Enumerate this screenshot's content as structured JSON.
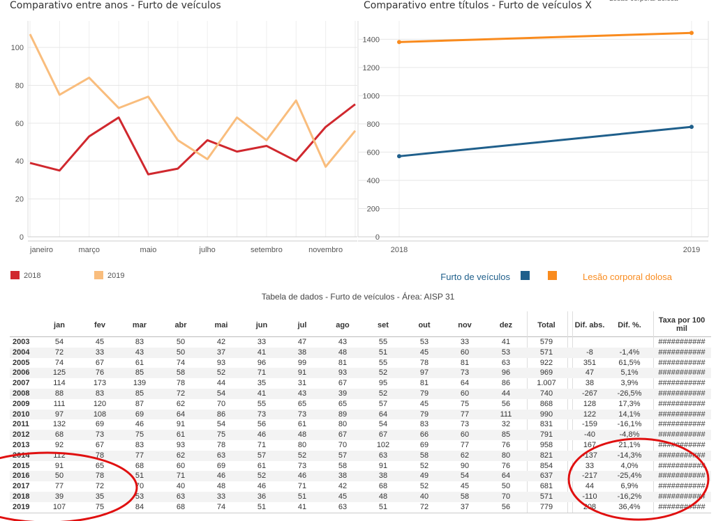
{
  "chart_data": [
    {
      "type": "line",
      "title": "Comparativo entre anos - Furto de veículos",
      "categories": [
        "janeiro",
        null,
        "março",
        null,
        "maio",
        null,
        "julho",
        null,
        "setembro",
        null,
        "novembro",
        null
      ],
      "series": [
        {
          "name": "2018",
          "color": "#d0282e",
          "values": [
            39,
            35,
            53,
            63,
            33,
            36,
            51,
            45,
            48,
            40,
            58,
            70
          ]
        },
        {
          "name": "2019",
          "color": "#f9bd7d",
          "values": [
            107,
            75,
            84,
            68,
            74,
            51,
            41,
            63,
            51,
            72,
            37,
            56
          ]
        }
      ],
      "ylim": [
        0,
        114
      ],
      "yticks": [
        0,
        20,
        40,
        60,
        80,
        100
      ],
      "grid": true
    },
    {
      "type": "line",
      "title": "Comparativo entre títulos - Furto de veículos X",
      "categories": [
        "2018",
        "2019"
      ],
      "series": [
        {
          "name": "Furto de veículos",
          "color": "#1f5f8b",
          "values": [
            571,
            779
          ]
        },
        {
          "name": "Lesão corporal dolosa",
          "color": "#f98b1e",
          "values": [
            1380,
            1445
          ]
        }
      ],
      "ylim": [
        0,
        1530
      ],
      "yticks": [
        0,
        200,
        400,
        600,
        800,
        1000,
        1200,
        1400
      ],
      "grid": true
    }
  ],
  "table": {
    "title": "Tabela de dados - Furto de veículos - Área: AISP 31",
    "columns": [
      "jan",
      "fev",
      "mar",
      "abr",
      "mai",
      "jun",
      "jul",
      "ago",
      "set",
      "out",
      "nov",
      "dez",
      "Total",
      "Dif. abs.",
      "Dif. %.",
      "Taxa por 100 mil"
    ],
    "rows": [
      [
        "2003",
        "54",
        "45",
        "83",
        "50",
        "42",
        "33",
        "47",
        "43",
        "55",
        "53",
        "33",
        "41",
        "579",
        null,
        null,
        "###########"
      ],
      [
        "2004",
        "72",
        "33",
        "43",
        "50",
        "37",
        "41",
        "38",
        "48",
        "51",
        "45",
        "60",
        "53",
        "571",
        "-8",
        "-1,4%",
        "###########"
      ],
      [
        "2005",
        "74",
        "67",
        "61",
        "74",
        "93",
        "96",
        "99",
        "81",
        "55",
        "78",
        "81",
        "63",
        "922",
        "351",
        "61,5%",
        "###########"
      ],
      [
        "2006",
        "125",
        "76",
        "85",
        "58",
        "52",
        "71",
        "91",
        "93",
        "52",
        "97",
        "73",
        "96",
        "969",
        "47",
        "5,1%",
        "###########"
      ],
      [
        "2007",
        "114",
        "173",
        "139",
        "78",
        "44",
        "35",
        "31",
        "67",
        "95",
        "81",
        "64",
        "86",
        "1.007",
        "38",
        "3,9%",
        "###########"
      ],
      [
        "2008",
        "88",
        "83",
        "85",
        "72",
        "54",
        "41",
        "43",
        "39",
        "52",
        "79",
        "60",
        "44",
        "740",
        "-267",
        "-26,5%",
        "###########"
      ],
      [
        "2009",
        "111",
        "120",
        "87",
        "62",
        "70",
        "55",
        "65",
        "65",
        "57",
        "45",
        "75",
        "56",
        "868",
        "128",
        "17,3%",
        "###########"
      ],
      [
        "2010",
        "97",
        "108",
        "69",
        "64",
        "86",
        "73",
        "73",
        "89",
        "64",
        "79",
        "77",
        "111",
        "990",
        "122",
        "14,1%",
        "###########"
      ],
      [
        "2011",
        "132",
        "69",
        "46",
        "91",
        "54",
        "56",
        "61",
        "80",
        "54",
        "83",
        "73",
        "32",
        "831",
        "-159",
        "-16,1%",
        "###########"
      ],
      [
        "2012",
        "68",
        "73",
        "75",
        "61",
        "75",
        "46",
        "48",
        "67",
        "67",
        "66",
        "60",
        "85",
        "791",
        "-40",
        "-4,8%",
        "###########"
      ],
      [
        "2013",
        "92",
        "67",
        "83",
        "93",
        "78",
        "71",
        "80",
        "70",
        "102",
        "69",
        "77",
        "76",
        "958",
        "167",
        "21,1%",
        "###########"
      ],
      [
        "2014",
        "112",
        "78",
        "77",
        "62",
        "63",
        "57",
        "52",
        "57",
        "63",
        "58",
        "62",
        "80",
        "821",
        "-137",
        "-14,3%",
        "###########"
      ],
      [
        "2015",
        "91",
        "65",
        "68",
        "60",
        "69",
        "61",
        "73",
        "58",
        "91",
        "52",
        "90",
        "76",
        "854",
        "33",
        "4,0%",
        "###########"
      ],
      [
        "2016",
        "50",
        "78",
        "51",
        "71",
        "46",
        "52",
        "46",
        "38",
        "38",
        "49",
        "54",
        "64",
        "637",
        "-217",
        "-25,4%",
        "###########"
      ],
      [
        "2017",
        "77",
        "72",
        "70",
        "40",
        "48",
        "46",
        "71",
        "42",
        "68",
        "52",
        "45",
        "50",
        "681",
        "44",
        "6,9%",
        "###########"
      ],
      [
        "2018",
        "39",
        "35",
        "53",
        "63",
        "33",
        "36",
        "51",
        "45",
        "48",
        "40",
        "58",
        "70",
        "571",
        "-110",
        "-16,2%",
        "###########"
      ],
      [
        "2019",
        "107",
        "75",
        "84",
        "68",
        "74",
        "51",
        "41",
        "63",
        "51",
        "72",
        "37",
        "56",
        "779",
        "208",
        "36,4%",
        "###########"
      ]
    ]
  }
}
